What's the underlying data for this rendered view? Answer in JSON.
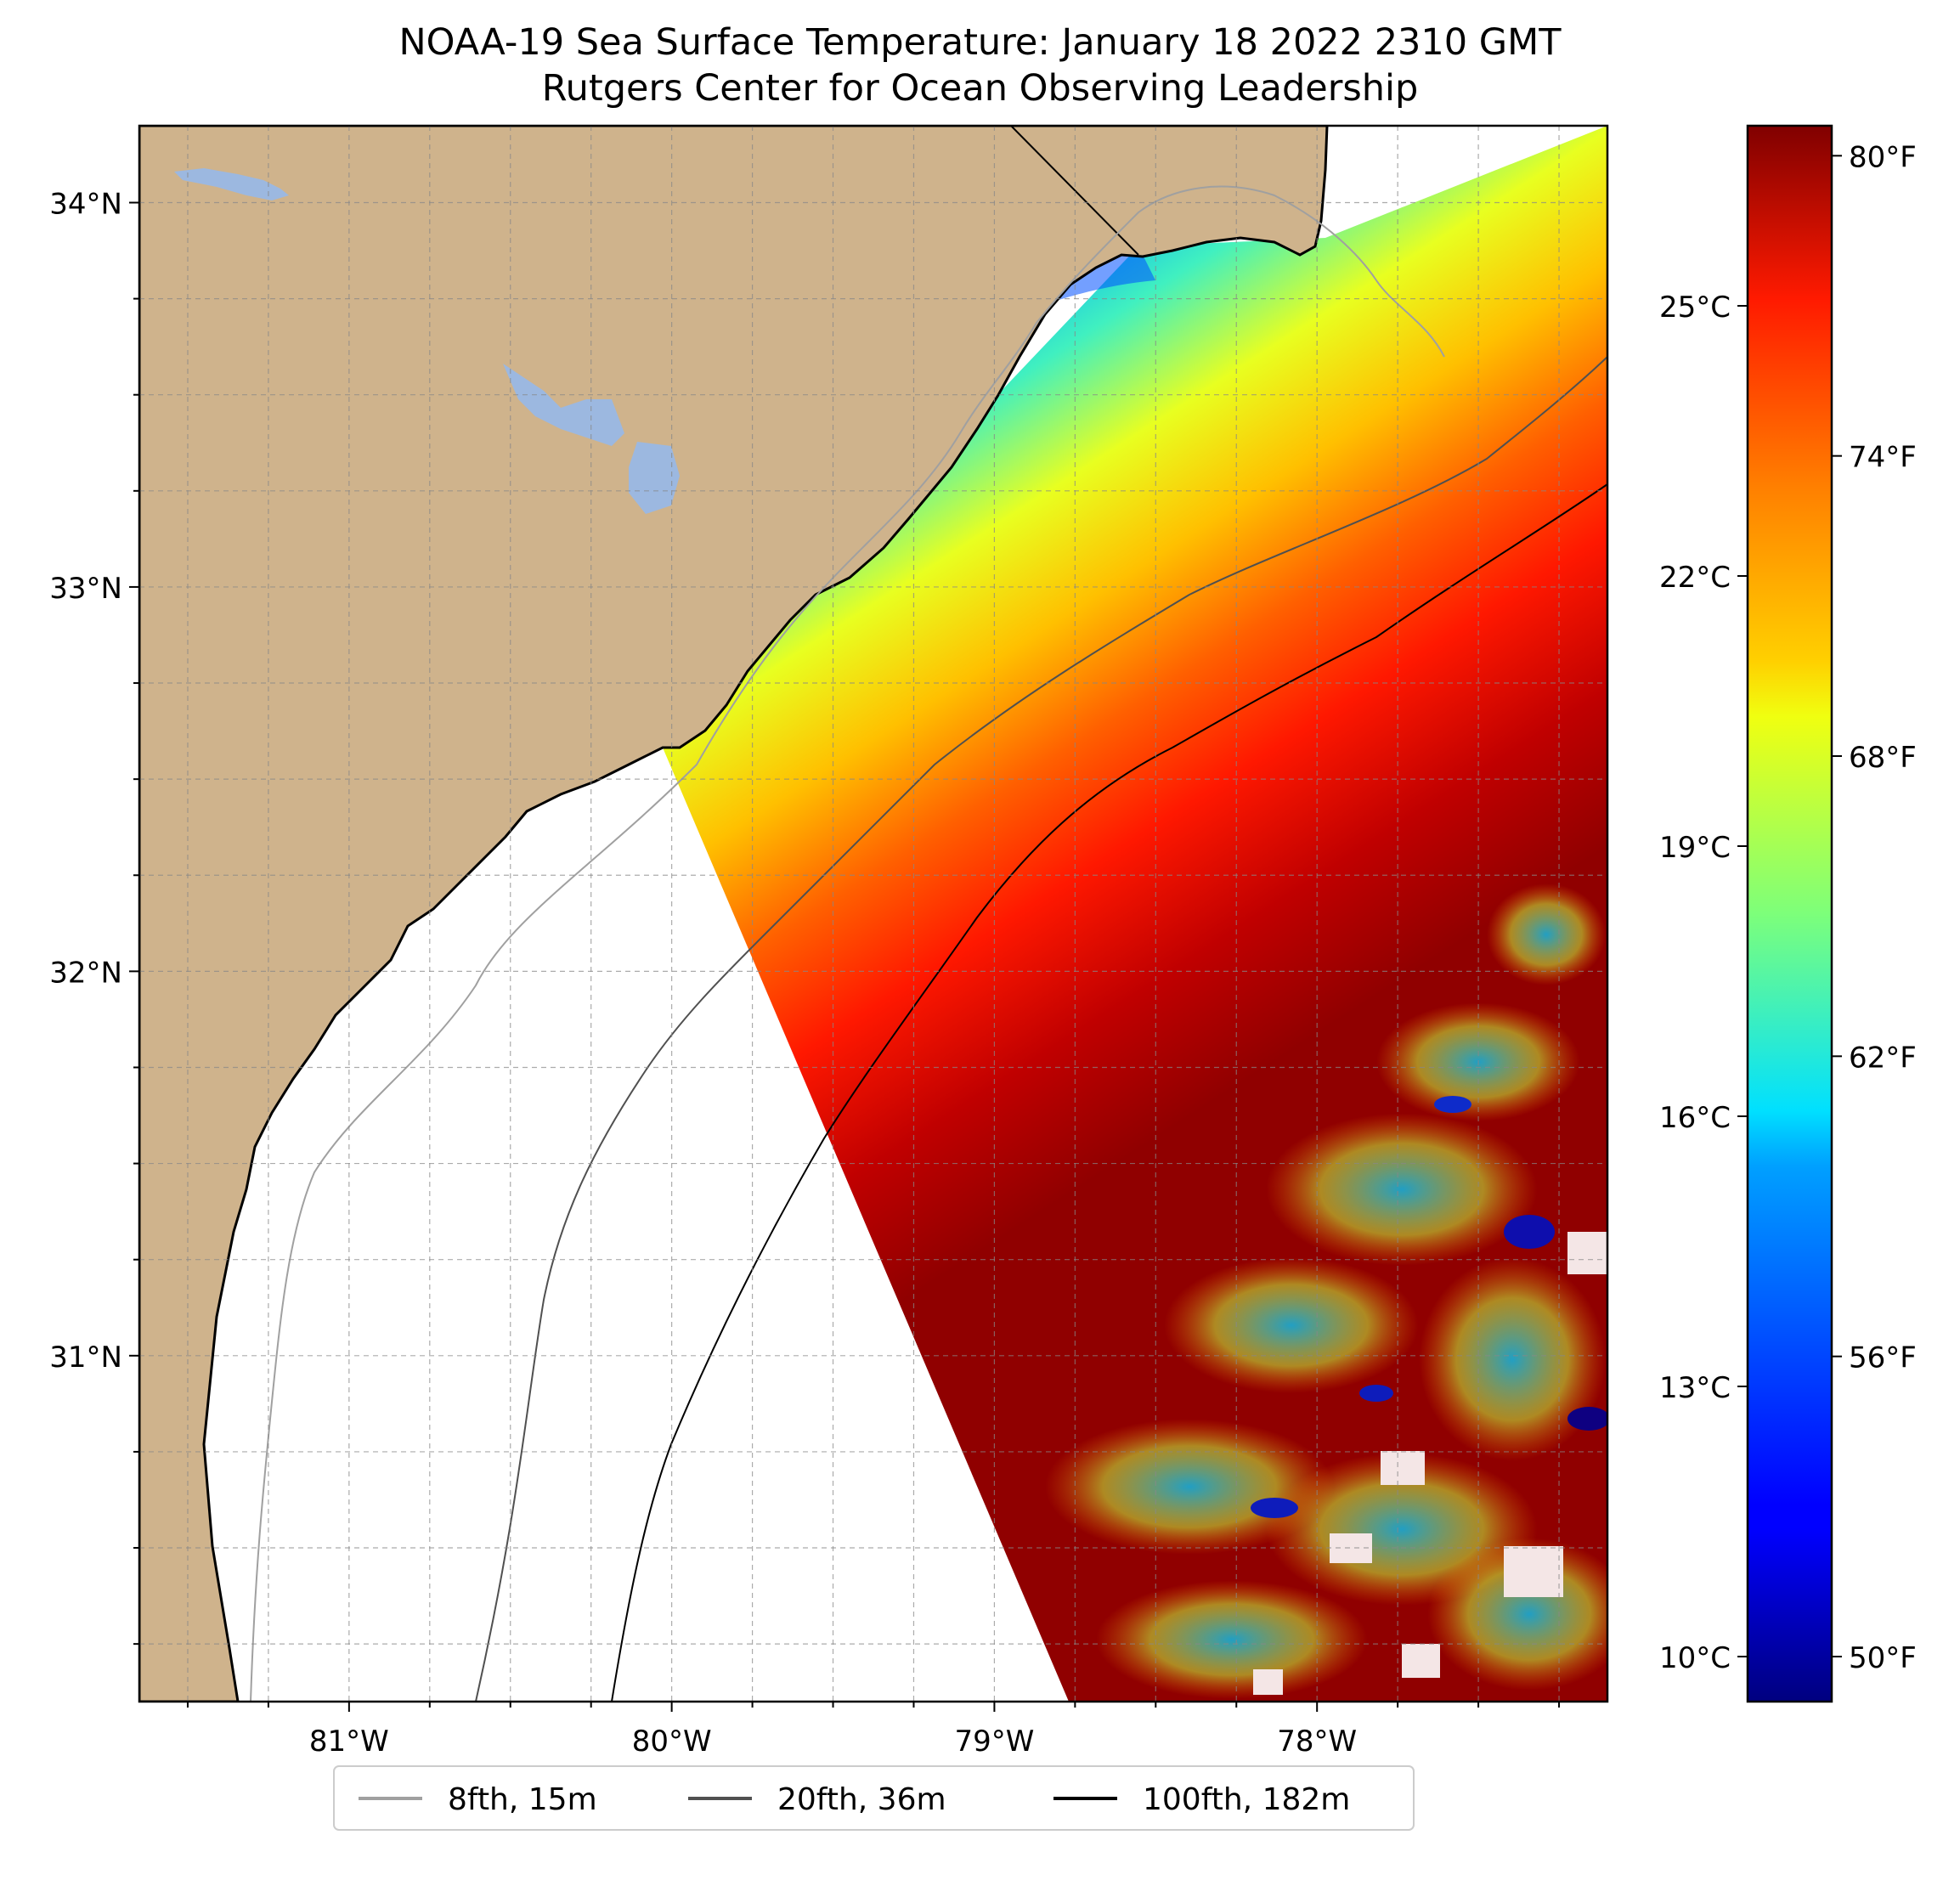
{
  "title": "NOAA-19 Sea Surface Temperature: January 18 2022 2310 GMT",
  "subtitle": "Rutgers Center for Ocean Observing Leadership",
  "map": {
    "lat_range": [
      30.1,
      34.2
    ],
    "lon_range": [
      -81.65,
      -77.1
    ],
    "lat_ticks": [
      {
        "value": 34,
        "label": "34°N"
      },
      {
        "value": 33,
        "label": "33°N"
      },
      {
        "value": 32,
        "label": "32°N"
      },
      {
        "value": 31,
        "label": "31°N"
      }
    ],
    "lon_ticks": [
      {
        "value": -81,
        "label": "81°W"
      },
      {
        "value": -80,
        "label": "80°W"
      },
      {
        "value": -79,
        "label": "79°W"
      },
      {
        "value": -78,
        "label": "78°W"
      }
    ],
    "gridlines": "dashed, every 0.25°",
    "land_color": "#cfb38c",
    "lake_color": "#9cb8e0"
  },
  "colorbar": {
    "colormap": "jet",
    "range_c": [
      9.5,
      27.0
    ],
    "celsius_ticks": [
      {
        "value": 25,
        "label": "25°C"
      },
      {
        "value": 22,
        "label": "22°C"
      },
      {
        "value": 19,
        "label": "19°C"
      },
      {
        "value": 16,
        "label": "16°C"
      },
      {
        "value": 13,
        "label": "13°C"
      },
      {
        "value": 10,
        "label": "10°C"
      }
    ],
    "fahrenheit_ticks": [
      {
        "value": 80,
        "label": "80°F"
      },
      {
        "value": 74,
        "label": "74°F"
      },
      {
        "value": 68,
        "label": "68°F"
      },
      {
        "value": 62,
        "label": "62°F"
      },
      {
        "value": 56,
        "label": "56°F"
      },
      {
        "value": 50,
        "label": "50°F"
      }
    ]
  },
  "legend": {
    "placement": "bottom-center",
    "items": [
      {
        "label": "8fth, 15m",
        "color": "#a0a0a0"
      },
      {
        "label": "20fth, 36m",
        "color": "#505050"
      },
      {
        "label": "100fth, 182m",
        "color": "#000000"
      }
    ]
  }
}
